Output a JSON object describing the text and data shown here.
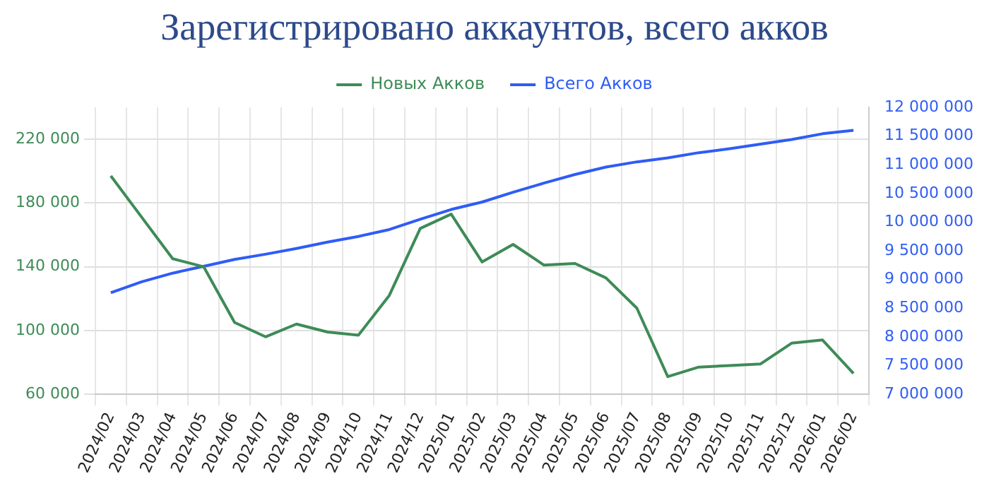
{
  "chart_data": {
    "type": "line",
    "title": "Зарегистрировано аккаунтов, всего акков",
    "categories": [
      "2024/02",
      "2024/03",
      "2024/04",
      "2024/05",
      "2024/06",
      "2024/07",
      "2024/08",
      "2024/09",
      "2024/10",
      "2024/11",
      "2024/12",
      "2025/01",
      "2025/02",
      "2025/03",
      "2025/04",
      "2025/05",
      "2025/06",
      "2025/07",
      "2025/08",
      "2025/09",
      "2025/10",
      "2025/11",
      "2025/12",
      "2026/01",
      "2026/02"
    ],
    "series": [
      {
        "name": "Новых Акков",
        "color": "#3e8b57",
        "axis": "y",
        "values": [
          197000,
          171000,
          145000,
          140000,
          105000,
          96000,
          104000,
          99000,
          97000,
          122000,
          164000,
          173000,
          143000,
          154000,
          141000,
          142000,
          133000,
          114000,
          71000,
          77000,
          78000,
          79000,
          92000,
          94000,
          73000
        ]
      },
      {
        "name": "Всего Акков",
        "color": "#2f5cf5",
        "axis": "y2",
        "values": [
          8770000,
          8960000,
          9110000,
          9230000,
          9350000,
          9440000,
          9540000,
          9650000,
          9750000,
          9870000,
          10050000,
          10220000,
          10350000,
          10520000,
          10680000,
          10830000,
          10960000,
          11050000,
          11120000,
          11210000,
          11280000,
          11360000,
          11440000,
          11540000,
          11600000
        ]
      }
    ],
    "ylim": [
      60000,
      240000
    ],
    "yticks": [
      60000,
      100000,
      140000,
      180000,
      220000
    ],
    "y2lim": [
      7000000,
      12000000
    ],
    "y2ticks": [
      7000000,
      7500000,
      8000000,
      8500000,
      9000000,
      9500000,
      10000000,
      10500000,
      11000000,
      11500000,
      12000000
    ],
    "grid": true,
    "legend": "top",
    "marker": "none",
    "line_style": "solid"
  }
}
